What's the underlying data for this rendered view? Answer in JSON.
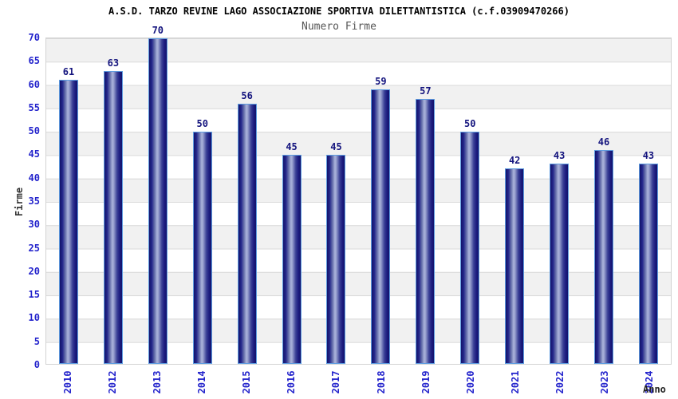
{
  "header": {
    "title": "A.S.D. TARZO REVINE LAGO ASSOCIAZIONE SPORTIVA DILETTANTISTICA (c.f.03909470266)",
    "subtitle": "Numero Firme"
  },
  "axes": {
    "y_title": "Firme",
    "x_title": "Anno"
  },
  "colors": {
    "tick_label_blue": "#2323cc",
    "value_label_navy": "#14147e",
    "bar_edge_dark": "#13136b",
    "bar_center_light": "#aab3db",
    "bar_border_lightblue": "#5e9ce0",
    "band_gray": "#f1f1f1",
    "gridline_gray": "#d9d9d9",
    "title_black": "#000000",
    "subtitle_gray": "#555555"
  },
  "chart_data": {
    "type": "bar",
    "title": "A.S.D. TARZO REVINE LAGO ASSOCIAZIONE SPORTIVA DILETTANTISTICA (c.f.03909470266)",
    "subtitle": "Numero Firme",
    "xlabel": "Anno",
    "ylabel": "Firme",
    "categories": [
      "2010",
      "2012",
      "2013",
      "2014",
      "2015",
      "2016",
      "2017",
      "2018",
      "2019",
      "2020",
      "2021",
      "2022",
      "2023",
      "2024"
    ],
    "values": [
      61,
      63,
      70,
      50,
      56,
      45,
      45,
      59,
      57,
      50,
      42,
      43,
      46,
      43
    ],
    "ylim": [
      0,
      70
    ],
    "ytick_step": 5,
    "yticks": [
      0,
      5,
      10,
      15,
      20,
      25,
      30,
      35,
      40,
      45,
      50,
      55,
      60,
      65,
      70
    ],
    "grid": true,
    "banded_background": true,
    "legend_position": "none",
    "bar_value_labels_shown": true
  }
}
